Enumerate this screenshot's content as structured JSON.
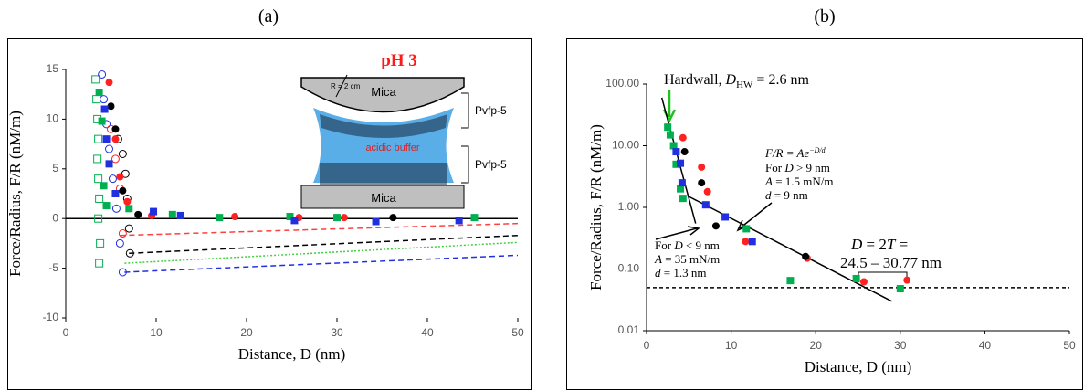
{
  "chart_data": [
    {
      "type": "scatter",
      "title": "(a)",
      "xlabel": "Distance, D (nm)",
      "ylabel": "Force/Radius, F/R (nM/m)",
      "xlim": [
        0,
        50
      ],
      "ylim": [
        -10,
        15
      ],
      "xticks": [
        0,
        10,
        20,
        30,
        40,
        50
      ],
      "yticks": [
        -10,
        -5,
        0,
        5,
        10,
        15
      ],
      "zero_line": true,
      "series": [
        {
          "color": "#00b050",
          "marker": "square",
          "filled": false,
          "x": [
            3.3,
            3.4,
            3.5,
            3.6,
            3.5,
            3.6,
            3.7,
            3.6,
            3.8,
            3.7
          ],
          "y": [
            14,
            12,
            10,
            8,
            6,
            4,
            2,
            0,
            -2.5,
            -4.5
          ]
        },
        {
          "color": "#2030e0",
          "marker": "circle",
          "filled": false,
          "x": [
            4,
            4.2,
            4.5,
            4.8,
            5.2,
            5.6,
            6,
            6.3
          ],
          "y": [
            14.5,
            12,
            9.5,
            7,
            4,
            1,
            -2.5,
            -5.4
          ]
        },
        {
          "color": "#000000",
          "marker": "circle",
          "filled": false,
          "x": [
            5.8,
            6.3,
            6.6,
            6.8,
            7,
            7.1
          ],
          "y": [
            8,
            6.5,
            4.5,
            2,
            -1,
            -3.5
          ]
        },
        {
          "color": "#ff2020",
          "marker": "circle",
          "filled": false,
          "x": [
            5,
            5.5,
            6,
            6.3
          ],
          "y": [
            9,
            6,
            3,
            -1.5
          ]
        },
        {
          "color": "#ff2020",
          "marker": "circle",
          "filled": true,
          "x": [
            4.8,
            5.5,
            6,
            6.8,
            9.5,
            18.7,
            25.8,
            30.8
          ],
          "y": [
            13.7,
            8,
            4.2,
            1.7,
            0.3,
            0.2,
            0.1,
            0.1
          ]
        },
        {
          "color": "#000000",
          "marker": "circle",
          "filled": true,
          "x": [
            5,
            5.5,
            6.3,
            8,
            36.2
          ],
          "y": [
            11.3,
            9,
            2.8,
            0.4,
            0.1
          ]
        },
        {
          "color": "#00b050",
          "marker": "square",
          "filled": true,
          "x": [
            3.7,
            4,
            4.2,
            4.5,
            7,
            11.8,
            17,
            24.8,
            30,
            45.2
          ],
          "y": [
            12.7,
            9.8,
            3.3,
            1.3,
            1,
            0.4,
            0.1,
            0.2,
            0.1,
            0.1
          ]
        },
        {
          "color": "#2030e0",
          "marker": "square",
          "filled": true,
          "x": [
            4.3,
            4.5,
            4.8,
            5.5,
            9.7,
            12.7,
            25.3,
            34.3,
            43.5
          ],
          "y": [
            11,
            8,
            5.5,
            2.5,
            0.7,
            0.3,
            -0.2,
            -0.3,
            -0.2
          ]
        }
      ],
      "lines": [
        {
          "color": "#ff4040",
          "dash": "6 4",
          "x": [
            6,
            50
          ],
          "y": [
            -1.7,
            -0.5
          ]
        },
        {
          "color": "#000000",
          "dash": "6 4",
          "x": [
            7,
            50
          ],
          "y": [
            -3.5,
            -1.7
          ]
        },
        {
          "color": "#40d040",
          "dash": "2 2",
          "x": [
            6.5,
            50
          ],
          "y": [
            -4.5,
            -2.4
          ]
        },
        {
          "color": "#2030e0",
          "dash": "6 4",
          "x": [
            6.5,
            50
          ],
          "y": [
            -5.4,
            -3.7
          ]
        }
      ],
      "annotations": [
        "pH 3",
        "R = 2 cm",
        "Mica",
        "Pvfp-5",
        "acidic buffer",
        "Pvfp-5",
        "Mica"
      ]
    },
    {
      "type": "scatter",
      "title": "(b)",
      "xlabel": "Distance, D (nm)",
      "ylabel": "Force/Radius, F/R (nM/m)",
      "xlim": [
        0,
        50
      ],
      "ylim": [
        0.01,
        100
      ],
      "log_y": true,
      "xticks": [
        0,
        10,
        20,
        30,
        40,
        50
      ],
      "yticks": [
        0.01,
        {
          "value": 0.1,
          "label": "0.10"
        },
        {
          "value": 1,
          "label": "1.00"
        },
        {
          "value": 10,
          "label": "10.00"
        },
        {
          "value": 100,
          "label": "100.00"
        }
      ],
      "series": [
        {
          "color": "#00b050",
          "marker": "square",
          "filled": true,
          "x": [
            2.5,
            2.8,
            3.2,
            3.5,
            4,
            4.3,
            11.8,
            17,
            24.8,
            30
          ],
          "y": [
            20,
            15,
            10,
            5,
            2,
            1.4,
            0.45,
            0.065,
            0.07,
            0.048
          ]
        },
        {
          "color": "#ff2020",
          "marker": "circle",
          "filled": true,
          "x": [
            4.3,
            6.5,
            7.2,
            11.7,
            19,
            25.7,
            30.8
          ],
          "y": [
            13.5,
            4.5,
            1.8,
            0.28,
            0.15,
            0.062,
            0.066
          ]
        },
        {
          "color": "#2030e0",
          "marker": "square",
          "filled": true,
          "x": [
            3.5,
            4,
            4.2,
            7,
            9.3,
            12.5
          ],
          "y": [
            8,
            5.2,
            2.5,
            1.1,
            0.7,
            0.28
          ]
        },
        {
          "color": "#000000",
          "marker": "circle",
          "filled": true,
          "x": [
            4.5,
            6.5,
            8.2,
            18.8
          ],
          "y": [
            8,
            2.5,
            0.5,
            0.16
          ]
        }
      ],
      "lines": [
        {
          "color": "#000000",
          "dash": "",
          "x": [
            1.8,
            5.8
          ],
          "y": [
            60,
            0.55
          ]
        },
        {
          "color": "#000000",
          "dash": "",
          "x": [
            5,
            29
          ],
          "y": [
            1.5,
            0.03
          ]
        },
        {
          "color": "#000000",
          "dash": "4 3",
          "x": [
            0,
            50
          ],
          "y": [
            0.05,
            0.05
          ]
        }
      ],
      "annotations": [
        [
          "Hardwall, ",
          "D",
          "HW",
          " = 2.6 nm"
        ],
        [
          "F/R = Ae",
          "−D/d"
        ],
        [
          "For ",
          "D",
          " > 9 nm"
        ],
        [
          "A",
          " =  1.5 mN/m"
        ],
        [
          "d",
          " = 9 nm"
        ],
        [
          "For ",
          "D",
          " < 9 nm"
        ],
        [
          "A",
          " = 35 mN/m"
        ],
        [
          "d",
          " = 1.3 nm"
        ],
        [
          "D",
          " = 2",
          "T",
          " ="
        ],
        [
          "24.5 – 30.77 nm"
        ]
      ]
    }
  ]
}
